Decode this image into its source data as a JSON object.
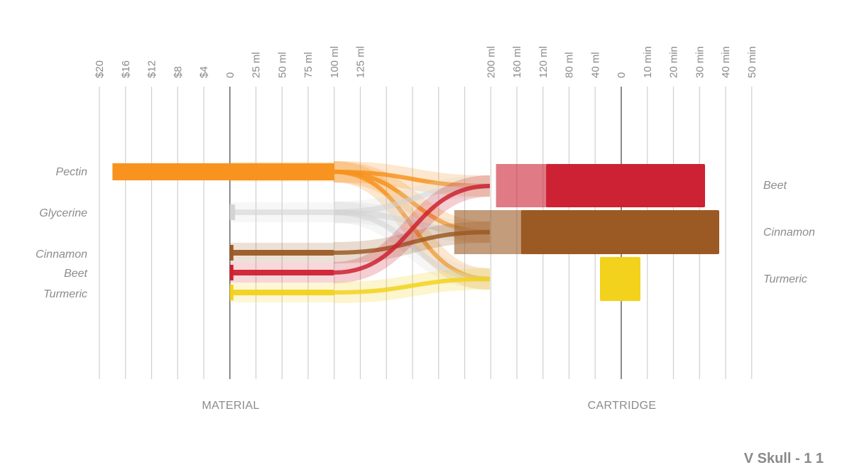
{
  "diagram": {
    "axes": {
      "price": [
        "$20",
        "$16",
        "$12",
        "$8",
        "$4",
        "0"
      ],
      "material_volume": [
        "25 ml",
        "50 ml",
        "75 ml",
        "100 ml",
        "125 ml"
      ],
      "cartridge_volume": [
        "200 ml",
        "160 ml",
        "120 ml",
        "80 ml",
        "40 ml",
        "0"
      ],
      "time": [
        "10 min",
        "20 min",
        "30 min",
        "40 min",
        "50 min"
      ]
    },
    "materials": [
      {
        "name": "Pectin",
        "price": 18,
        "volume_ml": 100,
        "color": "#f7931e"
      },
      {
        "name": "Glycerine",
        "price": 0,
        "volume_ml": 5,
        "color": "#d4d4d4"
      },
      {
        "name": "Cinnamon",
        "price": 0,
        "volume_ml": 0.5,
        "color": "#9b5a24"
      },
      {
        "name": "Beet",
        "price": 0,
        "volume_ml": 0.5,
        "color": "#cc2233"
      },
      {
        "name": "Turmeric",
        "price": 0,
        "volume_ml": 0,
        "color": "#f2d21c"
      }
    ],
    "cartridges": [
      {
        "name": "Beet",
        "volume_ml": 120,
        "time_min": 32,
        "color": "#cc2233"
      },
      {
        "name": "Cinnamon",
        "volume_ml": 160,
        "time_min": 37,
        "color": "#9b5a24"
      },
      {
        "name": "Turmeric",
        "volume_ml": 10,
        "time_min": 7,
        "color": "#f2d21c"
      }
    ],
    "section_labels": {
      "material": "MATERIAL",
      "cartridge": "CARTRIDGE"
    },
    "footer": "V Skull - 1 1"
  }
}
